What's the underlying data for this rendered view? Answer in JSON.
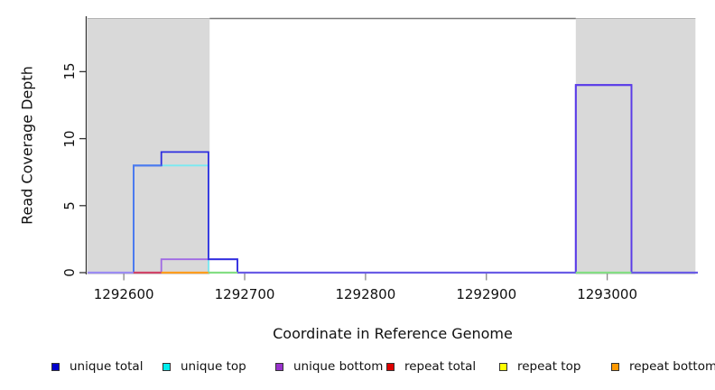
{
  "figure": {
    "x_axis_label": "Coordinate in Reference Genome",
    "y_axis_label": "Read Coverage Depth"
  },
  "chart_data": {
    "type": "line",
    "subtype": "step-coverage-plot",
    "title": "",
    "xlabel": "Coordinate in Reference Genome",
    "ylabel": "Read Coverage Depth",
    "xlim": [
      1292570,
      1293075
    ],
    "ylim": [
      0,
      19
    ],
    "x_ticks": [
      1292600,
      1292700,
      1292800,
      1292900,
      1293000
    ],
    "y_ticks": [
      0,
      5,
      10,
      15
    ],
    "grid": false,
    "legend_position": "bottom",
    "shaded_regions": [
      {
        "x0": 1292570,
        "x1": 1292671,
        "fill": "#d9d9d9"
      },
      {
        "x0": 1292974,
        "x1": 1293073,
        "fill": "#d9d9d9"
      }
    ],
    "top_border_segment": {
      "x0": 1292671,
      "x1": 1292974,
      "color": "#787878"
    },
    "series": [
      {
        "name": "repeat total",
        "color": "#d04468",
        "steps": [
          [
            1292570,
            0
          ],
          [
            1293075,
            0
          ]
        ]
      },
      {
        "name": "repeat top",
        "color": "#f0e60c",
        "steps": [
          [
            1292570,
            0
          ],
          [
            1293075,
            0
          ]
        ]
      },
      {
        "name": "repeat bottom",
        "color": "#ff9d1e",
        "steps": [
          [
            1292570,
            0
          ],
          [
            1293075,
            0
          ]
        ]
      },
      {
        "name": "unique top",
        "color": "#79e9f2",
        "steps": [
          [
            1292570,
            0
          ],
          [
            1292608,
            0
          ],
          [
            1292608,
            8
          ],
          [
            1292670,
            8
          ],
          [
            1292670,
            0
          ],
          [
            1293075,
            0
          ]
        ]
      },
      {
        "name": "unique bottom",
        "color": "#a06ae4",
        "steps": [
          [
            1292570,
            0
          ],
          [
            1292631,
            0
          ],
          [
            1292631,
            1
          ],
          [
            1292694,
            1
          ],
          [
            1292694,
            0
          ],
          [
            1292974,
            0
          ],
          [
            1292974,
            14
          ],
          [
            1293020,
            14
          ],
          [
            1293020,
            0
          ],
          [
            1293075,
            0
          ]
        ]
      },
      {
        "name": "unique total",
        "color": "#2d2de0",
        "steps": [
          [
            1292570,
            0
          ],
          [
            1292608,
            0
          ],
          [
            1292608,
            8
          ],
          [
            1292631,
            8
          ],
          [
            1292631,
            9
          ],
          [
            1292670,
            9
          ],
          [
            1292670,
            1
          ],
          [
            1292694,
            1
          ],
          [
            1292694,
            0
          ],
          [
            1292974,
            0
          ],
          [
            1292974,
            14
          ],
          [
            1293020,
            14
          ],
          [
            1293020,
            0
          ],
          [
            1293075,
            0
          ]
        ]
      }
    ],
    "overdraw_blends": [
      {
        "name": "blend-left-rise",
        "color": "#4a7bf0",
        "steps": [
          [
            1292608,
            0
          ],
          [
            1292608,
            8
          ],
          [
            1292631,
            8
          ]
        ]
      },
      {
        "name": "blend-right-peak",
        "color": "#5b3ce8",
        "steps": [
          [
            1292974,
            0
          ],
          [
            1292974,
            14
          ],
          [
            1293020,
            14
          ],
          [
            1293020,
            0
          ]
        ]
      }
    ],
    "baseline_segments": [
      {
        "color": "#9b8cf2",
        "x0": 1292570,
        "x1": 1292608
      },
      {
        "color": "#d04468",
        "x0": 1292608,
        "x1": 1292631
      },
      {
        "color": "#ff9d1e",
        "x0": 1292631,
        "x1": 1292670
      },
      {
        "color": "#84de84",
        "x0": 1292670,
        "x1": 1292694
      },
      {
        "color": "#6a5ce6",
        "x0": 1292694,
        "x1": 1292974
      },
      {
        "color": "#84de84",
        "x0": 1292974,
        "x1": 1293020
      },
      {
        "color": "#6a5ce6",
        "x0": 1293020,
        "x1": 1293075
      }
    ]
  },
  "legend": {
    "swatch_border": "#333333",
    "items": [
      {
        "label": "unique total",
        "swatch": "#0000cc"
      },
      {
        "label": "unique top",
        "swatch": "#00eeee"
      },
      {
        "label": "unique bottom",
        "swatch": "#9932cc"
      },
      {
        "label": "repeat total",
        "swatch": "#dd0000"
      },
      {
        "label": "repeat top",
        "swatch": "#ffff00"
      },
      {
        "label": "repeat bottom",
        "swatch": "#ff9900"
      }
    ]
  }
}
